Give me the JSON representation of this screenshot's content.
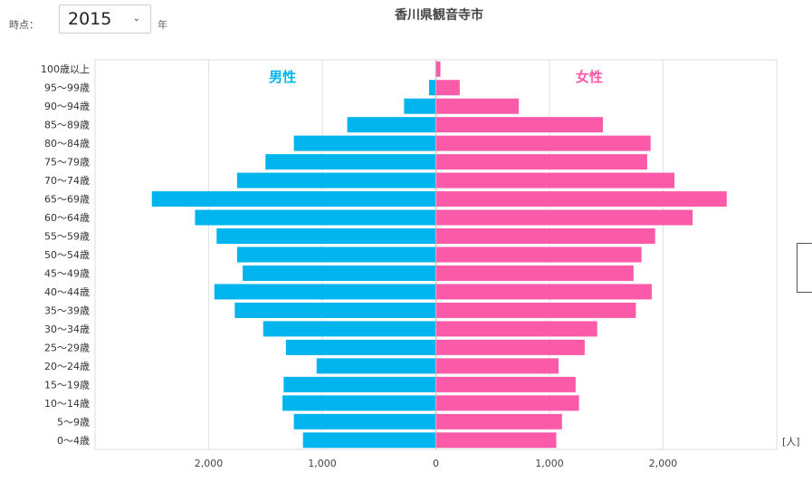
{
  "controls": {
    "year_label": "時点：",
    "year_value": "2015",
    "year_unit": "年",
    "dropdown_icon": "chevron-down-icon"
  },
  "chart_data": {
    "type": "bar",
    "orientation": "horizontal-population-pyramid",
    "title": "香川県観音寺市",
    "unit_label": "[人]",
    "categories": [
      "100歳以上",
      "95～99歳",
      "90～94歳",
      "85～89歳",
      "80～84歳",
      "75～79歳",
      "70～74歳",
      "65～69歳",
      "60～64歳",
      "55～59歳",
      "50～54歳",
      "45～49歳",
      "40～44歳",
      "35～39歳",
      "30～34歳",
      "25～29歳",
      "20～24歳",
      "15～19歳",
      "10～14歳",
      "5～9歳",
      "0～4歳"
    ],
    "series": [
      {
        "name": "男性",
        "color": "#00b4ee",
        "values": [
          5,
          60,
          280,
          780,
          1250,
          1500,
          1750,
          2500,
          2120,
          1930,
          1750,
          1700,
          1950,
          1770,
          1520,
          1320,
          1050,
          1340,
          1350,
          1250,
          1170
        ]
      },
      {
        "name": "女性",
        "color": "#fa5aa8",
        "values": [
          40,
          210,
          730,
          1470,
          1890,
          1860,
          2100,
          2560,
          2260,
          1930,
          1810,
          1740,
          1900,
          1760,
          1420,
          1310,
          1080,
          1230,
          1260,
          1110,
          1060
        ]
      }
    ],
    "xlim": [
      -3000,
      3000
    ],
    "xticks": [
      -2000,
      -1000,
      0,
      1000,
      2000
    ],
    "xtick_labels": [
      "2,000",
      "1,000",
      "0",
      "1,000",
      "2,000"
    ],
    "grid": true,
    "legend_placement": "inside-top"
  }
}
